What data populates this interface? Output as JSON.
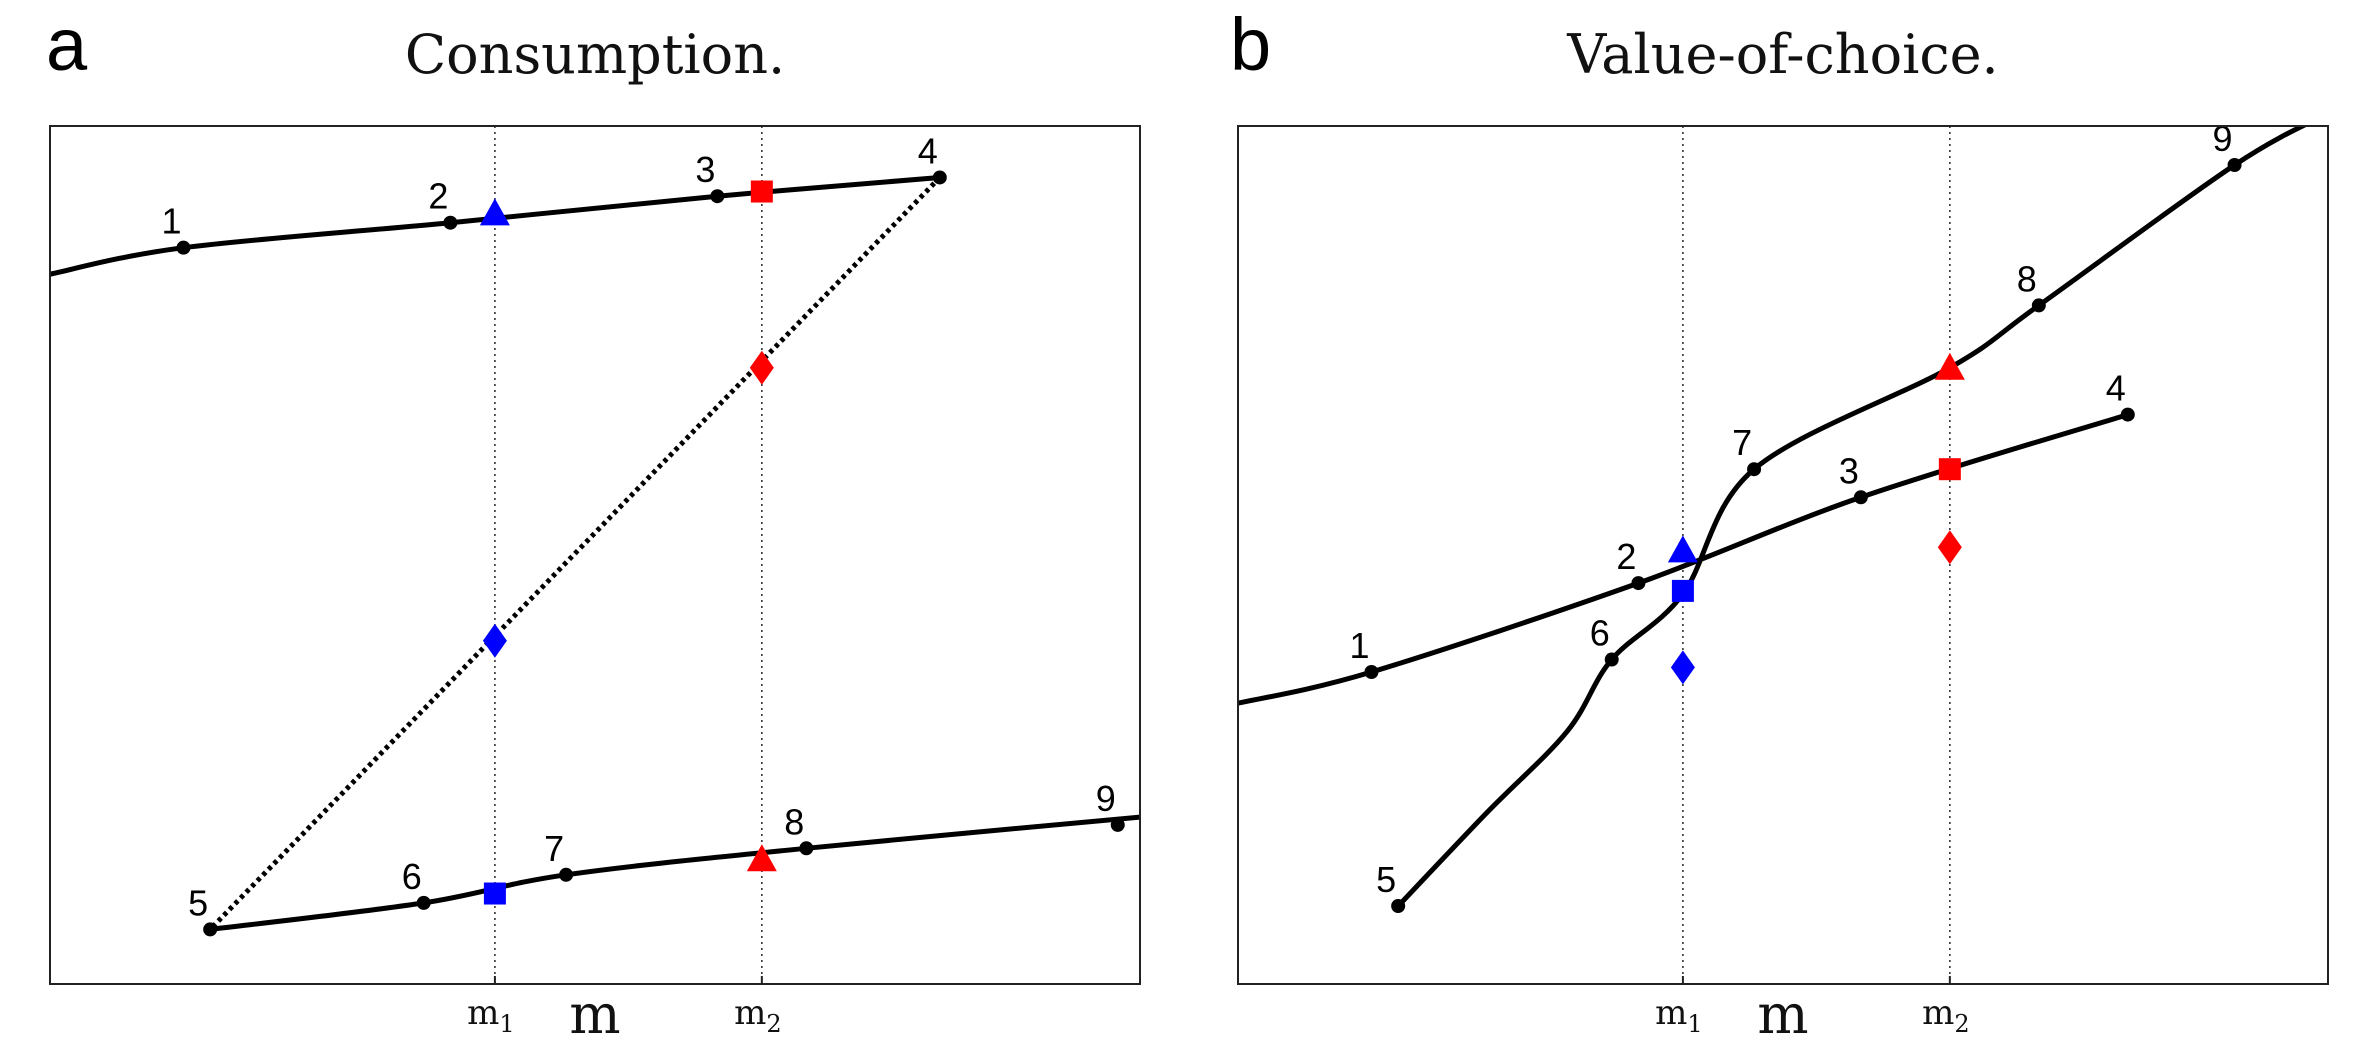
{
  "chart_data": [
    {
      "panel": "a",
      "title": "Consumption.",
      "type": "line",
      "xlabel": "m",
      "xticks": [
        {
          "x": 3.5,
          "label": "m",
          "sub": "1"
        },
        {
          "x": 6.5,
          "label": "m",
          "sub": "2"
        }
      ],
      "xlim": [
        -1.5,
        10.75
      ],
      "ylim": [
        0,
        5.5
      ],
      "series": [
        {
          "style": "solid",
          "color": "#000000",
          "points": [
            [
              -1.5,
              4.55
            ],
            [
              0,
              4.72
            ],
            [
              3,
              4.88
            ],
            [
              6,
              5.05
            ],
            [
              8.5,
              5.17
            ]
          ]
        },
        {
          "style": "dotted",
          "color": "#000000",
          "points": [
            [
              8.5,
              5.17
            ],
            [
              0.3,
              0.35
            ]
          ]
        },
        {
          "style": "solid",
          "color": "#000000",
          "points": [
            [
              0.3,
              0.35
            ],
            [
              2.7,
              0.52
            ],
            [
              4.3,
              0.7
            ],
            [
              7.0,
              0.87
            ],
            [
              10.75,
              1.07
            ]
          ]
        }
      ],
      "labeled_points": [
        {
          "label": "1",
          "x": 0,
          "y": 4.72
        },
        {
          "label": "2",
          "x": 3,
          "y": 4.88
        },
        {
          "label": "3",
          "x": 6,
          "y": 5.05
        },
        {
          "label": "4",
          "x": 8.5,
          "y": 5.17
        },
        {
          "label": "5",
          "x": 0.3,
          "y": 0.35
        },
        {
          "label": "6",
          "x": 2.7,
          "y": 0.52
        },
        {
          "label": "7",
          "x": 4.3,
          "y": 0.7
        },
        {
          "label": "8",
          "x": 7.0,
          "y": 0.87
        },
        {
          "label": "9",
          "x": 10.5,
          "y": 1.02
        }
      ],
      "markers": [
        {
          "shape": "triangle",
          "color": "#0000ff",
          "x": 3.5,
          "y": 4.94
        },
        {
          "shape": "square",
          "color": "#ff0000",
          "x": 6.5,
          "y": 5.08
        },
        {
          "shape": "diamond",
          "color": "#ff0000",
          "x": 6.5,
          "y": 3.95
        },
        {
          "shape": "diamond",
          "color": "#0000ff",
          "x": 3.5,
          "y": 2.2
        },
        {
          "shape": "square",
          "color": "#0000ff",
          "x": 3.5,
          "y": 0.58
        },
        {
          "shape": "triangle",
          "color": "#ff0000",
          "x": 6.5,
          "y": 0.8
        }
      ]
    },
    {
      "panel": "b",
      "title": "Value-of-choice.",
      "type": "line",
      "xlabel": "m",
      "xticks": [
        {
          "x": 3.5,
          "label": "m",
          "sub": "1"
        },
        {
          "x": 6.5,
          "label": "m",
          "sub": "2"
        }
      ],
      "xlim": [
        -1.5,
        10.75
      ],
      "ylim": [
        0,
        5.5
      ],
      "series": [
        {
          "style": "solid",
          "color": "#000000",
          "points": [
            [
              -1.5,
              1.8
            ],
            [
              0,
              2.0
            ],
            [
              3,
              2.57
            ],
            [
              5.5,
              3.12
            ],
            [
              8.5,
              3.65
            ]
          ]
        },
        {
          "style": "solid",
          "color": "#000000",
          "points": [
            [
              0.3,
              0.5
            ],
            [
              1.3,
              1.1
            ],
            [
              2.2,
              1.62
            ],
            [
              2.7,
              2.08
            ],
            [
              3.5,
              2.5
            ],
            [
              4.3,
              3.3
            ],
            [
              6.5,
              3.95
            ],
            [
              7.5,
              4.35
            ],
            [
              9.7,
              5.25
            ],
            [
              10.75,
              5.58
            ]
          ]
        }
      ],
      "labeled_points": [
        {
          "label": "1",
          "x": 0,
          "y": 2.0
        },
        {
          "label": "2",
          "x": 3,
          "y": 2.57
        },
        {
          "label": "3",
          "x": 5.5,
          "y": 3.12
        },
        {
          "label": "4",
          "x": 8.5,
          "y": 3.65
        },
        {
          "label": "5",
          "x": 0.3,
          "y": 0.5
        },
        {
          "label": "6",
          "x": 2.7,
          "y": 2.08
        },
        {
          "label": "7",
          "x": 4.3,
          "y": 3.3
        },
        {
          "label": "8",
          "x": 7.5,
          "y": 4.35
        },
        {
          "label": "9",
          "x": 9.7,
          "y": 5.25
        }
      ],
      "markers": [
        {
          "shape": "triangle",
          "color": "#0000ff",
          "x": 3.5,
          "y": 2.78
        },
        {
          "shape": "square",
          "color": "#0000ff",
          "x": 3.5,
          "y": 2.52
        },
        {
          "shape": "diamond",
          "color": "#0000ff",
          "x": 3.5,
          "y": 2.03
        },
        {
          "shape": "triangle",
          "color": "#ff0000",
          "x": 6.5,
          "y": 3.95
        },
        {
          "shape": "square",
          "color": "#ff0000",
          "x": 6.5,
          "y": 3.3
        },
        {
          "shape": "diamond",
          "color": "#ff0000",
          "x": 6.5,
          "y": 2.8
        }
      ]
    }
  ]
}
